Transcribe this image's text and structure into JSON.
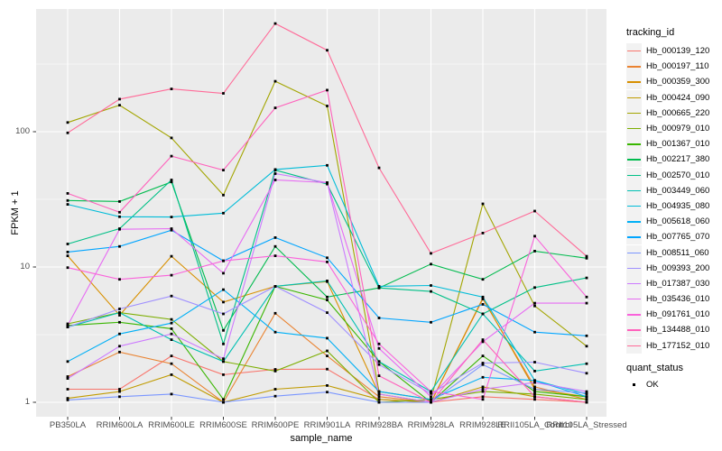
{
  "chart_data": {
    "type": "line",
    "title": "",
    "xlabel": "sample_name",
    "ylabel": "FPKM + 1",
    "y_scale": "log10",
    "y_ticks": [
      1,
      10,
      100
    ],
    "y_minor_ticks": [
      3.162,
      31.62,
      316.2
    ],
    "ylim_log10": [
      -0.107,
      2.907
    ],
    "grid": true,
    "point_marker": "black-square",
    "colors": {
      "panel_bg": "#EBEBEB",
      "grid": "#FFFFFF",
      "tick_text": "#4D4D4D",
      "axis_title": "#000000",
      "tick_mark": "#333333",
      "legend_key_bg": "#F2F2F2",
      "marker": "#000000"
    },
    "legend": {
      "title": "tracking_id",
      "position": "right"
    },
    "quant_status": {
      "title": "quant_status",
      "items": [
        {
          "label": "OK",
          "marker": "black-square"
        }
      ]
    },
    "categories": [
      "PB350LA",
      "RRIM600LA",
      "RRIM600LE",
      "RRIM600SE",
      "RRIM600PE",
      "RRIM901LA",
      "RRIM928BA",
      "RRIM928LA",
      "RRIM928LE",
      "RRII105LA_Control",
      "RRII105LA_Stressed"
    ],
    "series": [
      {
        "name": "Hb_000139_120",
        "color": "#F8766D",
        "values": [
          1.25,
          1.25,
          2.2,
          1.6,
          1.75,
          1.76,
          1.05,
          1.0,
          1.1,
          1.05,
          1.0
        ]
      },
      {
        "name": "Hb_000197_110",
        "color": "#EA8331",
        "values": [
          1.55,
          2.35,
          1.93,
          1.0,
          4.55,
          2.2,
          1.1,
          1.0,
          5.8,
          1.3,
          1.05
        ]
      },
      {
        "name": "Hb_000359_300",
        "color": "#D89000",
        "values": [
          12.1,
          4.4,
          12.0,
          5.5,
          7.2,
          7.8,
          1.15,
          1.0,
          5.9,
          1.25,
          1.1
        ]
      },
      {
        "name": "Hb_000424_090",
        "color": "#C09B00",
        "values": [
          1.07,
          1.2,
          1.6,
          1.0,
          1.25,
          1.33,
          1.05,
          1.0,
          1.3,
          1.1,
          1.0
        ]
      },
      {
        "name": "Hb_000665_220",
        "color": "#A3A500",
        "values": [
          117,
          157,
          90,
          34,
          236,
          155,
          1.2,
          1.05,
          29.3,
          5.15,
          2.6
        ]
      },
      {
        "name": "Hb_000979_010",
        "color": "#7CAE00",
        "values": [
          3.8,
          4.6,
          4.1,
          2.0,
          1.7,
          2.4,
          1.0,
          1.05,
          1.2,
          1.15,
          1.05
        ]
      },
      {
        "name": "Hb_001367_010",
        "color": "#39B600",
        "values": [
          3.7,
          3.9,
          3.5,
          1.05,
          7.2,
          5.7,
          2.0,
          1.0,
          2.2,
          1.2,
          1.1
        ]
      },
      {
        "name": "Hb_002217_380",
        "color": "#00BB4E",
        "values": [
          31,
          30.5,
          42.5,
          3.4,
          14.2,
          6.0,
          7.0,
          10.5,
          8.1,
          13.1,
          11.6
        ]
      },
      {
        "name": "Hb_002570_010",
        "color": "#00C087",
        "values": [
          14.8,
          19.2,
          44,
          2.7,
          52,
          41,
          7.0,
          6.6,
          4.5,
          7.05,
          8.3
        ]
      },
      {
        "name": "Hb_003449_060",
        "color": "#00C0B2",
        "values": [
          3.6,
          4.6,
          2.9,
          2.0,
          7.2,
          7.9,
          2.0,
          1.2,
          4.5,
          1.7,
          1.93
        ]
      },
      {
        "name": "Hb_004935_080",
        "color": "#00BCD8",
        "values": [
          29,
          23.5,
          23.4,
          25,
          52.6,
          56.4,
          7.2,
          7.3,
          6.0,
          1.45,
          1.15
        ]
      },
      {
        "name": "Hb_005618_060",
        "color": "#00B0F6",
        "values": [
          2.0,
          3.2,
          3.85,
          6.8,
          3.3,
          2.98,
          1.2,
          1.05,
          1.53,
          1.45,
          1.1
        ]
      },
      {
        "name": "Hb_007765_070",
        "color": "#00A5FF",
        "values": [
          12.9,
          14.2,
          18.7,
          11.1,
          16.5,
          11.7,
          4.2,
          3.9,
          5.3,
          3.3,
          3.1
        ]
      },
      {
        "name": "Hb_008511_060",
        "color": "#7A96FF",
        "values": [
          1.04,
          1.1,
          1.15,
          1.0,
          1.11,
          1.19,
          1.0,
          1.0,
          1.9,
          1.25,
          1.17
        ]
      },
      {
        "name": "Hb_009393_200",
        "color": "#9F8FFF",
        "values": [
          3.6,
          4.9,
          6.1,
          4.5,
          7.2,
          4.6,
          1.9,
          1.16,
          1.95,
          1.98,
          1.64
        ]
      },
      {
        "name": "Hb_017387_030",
        "color": "#CC79FF",
        "values": [
          1.5,
          2.6,
          3.2,
          2.1,
          49,
          42,
          1.15,
          1.0,
          1.25,
          1.4,
          1.2
        ]
      },
      {
        "name": "Hb_035436_010",
        "color": "#E76BF3",
        "values": [
          3.7,
          19,
          19.2,
          9.0,
          44,
          42,
          2.5,
          1.1,
          2.8,
          5.4,
          5.4
        ]
      },
      {
        "name": "Hb_091761_010",
        "color": "#FA62DB",
        "values": [
          9.9,
          8.1,
          8.7,
          11.1,
          12.1,
          10.9,
          2.7,
          1.2,
          1.05,
          16.9,
          6.0
        ]
      },
      {
        "name": "Hb_134488_010",
        "color": "#FF62BC",
        "values": [
          35,
          25.4,
          66,
          52,
          150,
          203,
          1.57,
          1.0,
          2.9,
          1.1,
          1.0
        ]
      },
      {
        "name": "Hb_177152_010",
        "color": "#FF6A98",
        "values": [
          98,
          174,
          207,
          192,
          630,
          400,
          54,
          12.6,
          17.8,
          25.9,
          12.0
        ]
      }
    ]
  }
}
